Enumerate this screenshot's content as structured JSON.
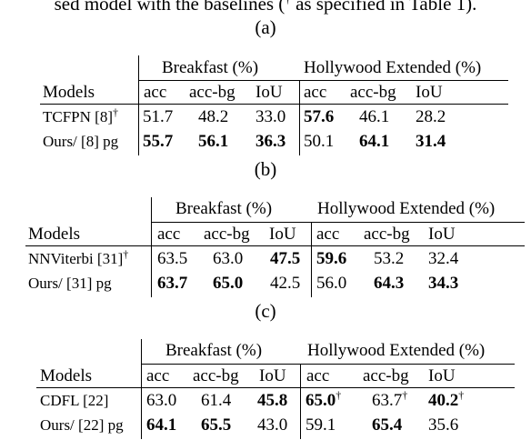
{
  "caption": {
    "text": "sed model with the baselines (",
    "dagger": "†",
    "rest": " as specified in Table 1)."
  },
  "tables": [
    {
      "label": "(a)",
      "group1": "Breakfast (%)",
      "group2": "Hollywood Extended (%)",
      "models_header": "Models",
      "cols": [
        "acc",
        "acc-bg",
        "IoU",
        "acc",
        "acc-bg",
        "IoU"
      ],
      "rows": [
        {
          "model": "TCFPN [8]",
          "dagger": "†",
          "vals": [
            "51.7",
            "48.2",
            "33.0",
            "57.6",
            "46.1",
            "28.2"
          ],
          "daggers": [
            "",
            "",
            "",
            "",
            "",
            ""
          ]
        },
        {
          "model": "Ours/ [8] pg",
          "dagger": "",
          "vals": [
            "55.7",
            "56.1",
            "36.3",
            "50.1",
            "64.1",
            "31.4"
          ],
          "daggers": [
            "",
            "",
            "",
            "",
            "",
            ""
          ]
        }
      ]
    },
    {
      "label": "(b)",
      "group1": "Breakfast (%)",
      "group2": "Hollywood Extended (%)",
      "models_header": "Models",
      "cols": [
        "acc",
        "acc-bg",
        "IoU",
        "acc",
        "acc-bg",
        "IoU"
      ],
      "rows": [
        {
          "model": "NNViterbi [31]",
          "dagger": "†",
          "vals": [
            "63.5",
            "63.0",
            "47.5",
            "59.6",
            "53.2",
            "32.4"
          ],
          "daggers": [
            "",
            "",
            "",
            "",
            "",
            ""
          ]
        },
        {
          "model": "Ours/ [31] pg",
          "dagger": "",
          "vals": [
            "63.7",
            "65.0",
            "42.5",
            "56.0",
            "64.3",
            "34.3"
          ],
          "daggers": [
            "",
            "",
            "",
            "",
            "",
            ""
          ]
        }
      ]
    },
    {
      "label": "(c)",
      "group1": "Breakfast (%)",
      "group2": "Hollywood Extended (%)",
      "models_header": "Models",
      "cols": [
        "acc",
        "acc-bg",
        "IoU",
        "acc",
        "acc-bg",
        "IoU"
      ],
      "rows": [
        {
          "model": "CDFL [22]",
          "dagger": "",
          "vals": [
            "63.0",
            "61.4",
            "45.8",
            "65.0",
            "63.7",
            "40.2"
          ],
          "daggers": [
            "",
            "",
            "",
            "†",
            "†",
            "†"
          ]
        },
        {
          "model": "Ours/ [22] pg",
          "dagger": "",
          "vals": [
            "64.1",
            "65.5",
            "43.0",
            "59.1",
            "65.4",
            "35.6"
          ],
          "daggers": [
            "",
            "",
            "",
            "",
            "",
            ""
          ]
        }
      ]
    }
  ]
}
